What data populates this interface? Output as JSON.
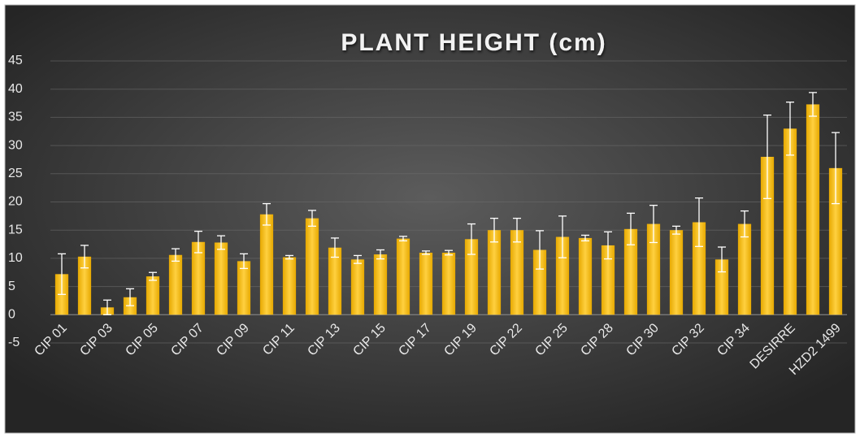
{
  "chart_data": {
    "type": "bar",
    "title": "PLANT HEIGHT (cm)",
    "categories": [
      "CIP 01",
      null,
      "CIP 03",
      null,
      "CIP 05",
      null,
      "CIP 07",
      null,
      "CIP 09",
      null,
      "CIP 11",
      null,
      "CIP 13",
      null,
      "CIP 15",
      null,
      "CIP 17",
      null,
      "CIP 19",
      null,
      "CIP 22",
      null,
      "CIP 25",
      null,
      "CIP 28",
      null,
      "CIP 30",
      null,
      "CIP 32",
      null,
      "CIP 34",
      null,
      "DESIRRE",
      null,
      "HZD2 1499"
    ],
    "values": [
      7.2,
      10.3,
      1.3,
      3.1,
      6.8,
      10.6,
      12.9,
      12.8,
      9.5,
      17.8,
      10.2,
      17.1,
      11.9,
      9.8,
      10.7,
      13.5,
      11.0,
      11.0,
      13.4,
      15.0,
      15.0,
      11.5,
      13.8,
      13.6,
      12.3,
      15.2,
      16.1,
      15.0,
      16.4,
      9.8,
      16.1,
      28.0,
      33.0,
      37.3,
      26.0
    ],
    "errors": [
      3.6,
      2.0,
      1.3,
      1.5,
      0.7,
      1.1,
      1.9,
      1.2,
      1.3,
      1.9,
      0.3,
      1.4,
      1.7,
      0.7,
      0.8,
      0.4,
      0.3,
      0.4,
      2.7,
      2.1,
      2.1,
      3.4,
      3.7,
      0.5,
      2.4,
      2.8,
      3.3,
      0.7,
      4.3,
      2.2,
      2.3,
      7.4,
      4.7,
      2.1,
      6.3
    ],
    "color": "#ffc000",
    "ylim": [
      -5,
      45
    ],
    "yticks": [
      -5,
      0,
      5,
      10,
      15,
      20,
      25,
      30,
      35,
      40,
      45
    ],
    "grid": true
  }
}
